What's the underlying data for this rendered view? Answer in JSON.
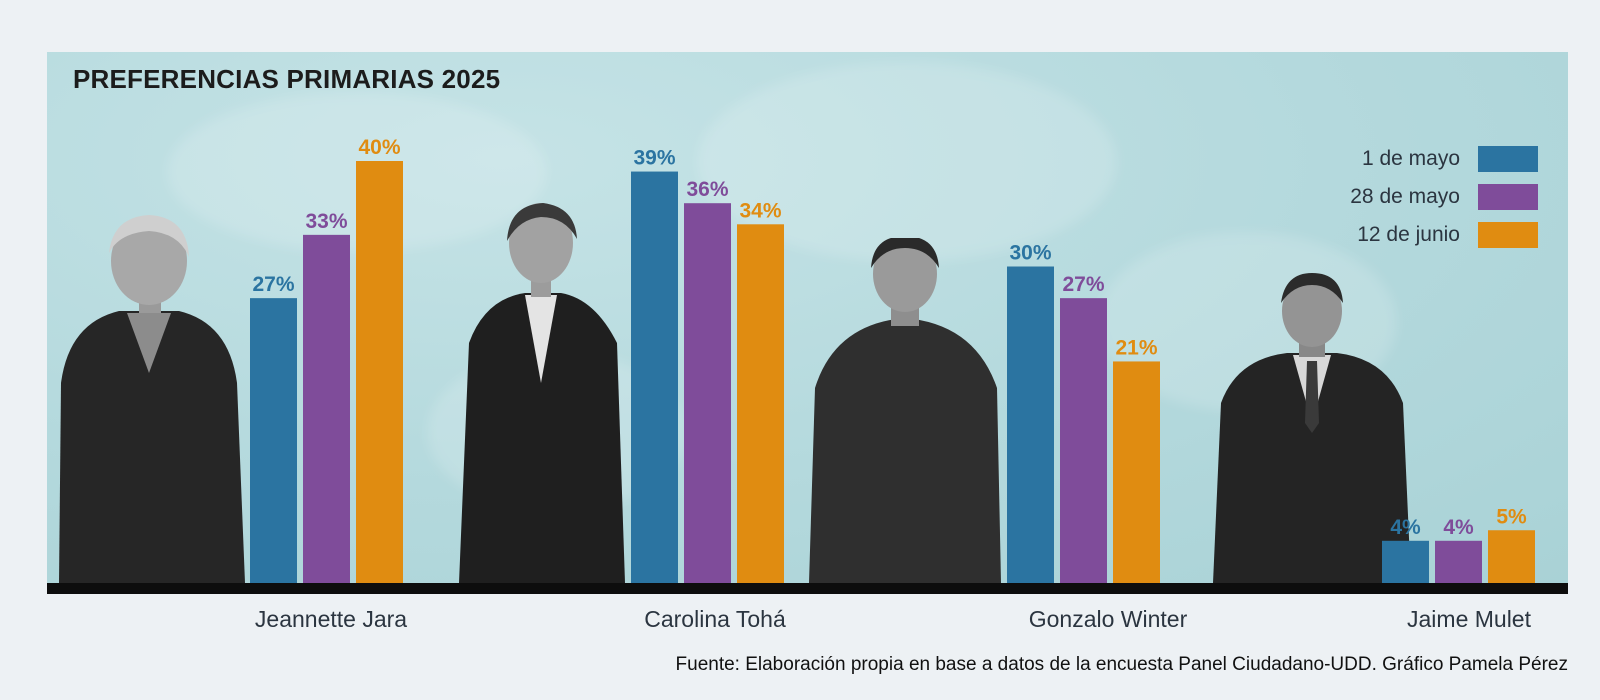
{
  "chart_data": {
    "type": "bar",
    "title": "PREFERENCIAS PRIMARIAS 2025",
    "categories": [
      "Jeannette Jara",
      "Carolina Tohá",
      "Gonzalo Winter",
      "Jaime Mulet"
    ],
    "series": [
      {
        "name": "1 de mayo",
        "values": [
          27,
          39,
          30,
          4
        ],
        "color": "#2b74a1"
      },
      {
        "name": "28 de mayo",
        "values": [
          33,
          36,
          27,
          4
        ],
        "color": "#7f4c9a"
      },
      {
        "name": "12 de junio",
        "values": [
          40,
          34,
          21,
          5
        ],
        "color": "#e08c11"
      }
    ],
    "value_suffix": "%",
    "ylim": [
      0,
      50
    ],
    "legend_position": "top-right",
    "grid": false
  },
  "source": "Fuente: Elaboración propia en base a datos de la encuesta Panel Ciudadano-UDD. Gráfico Pamela Pérez"
}
